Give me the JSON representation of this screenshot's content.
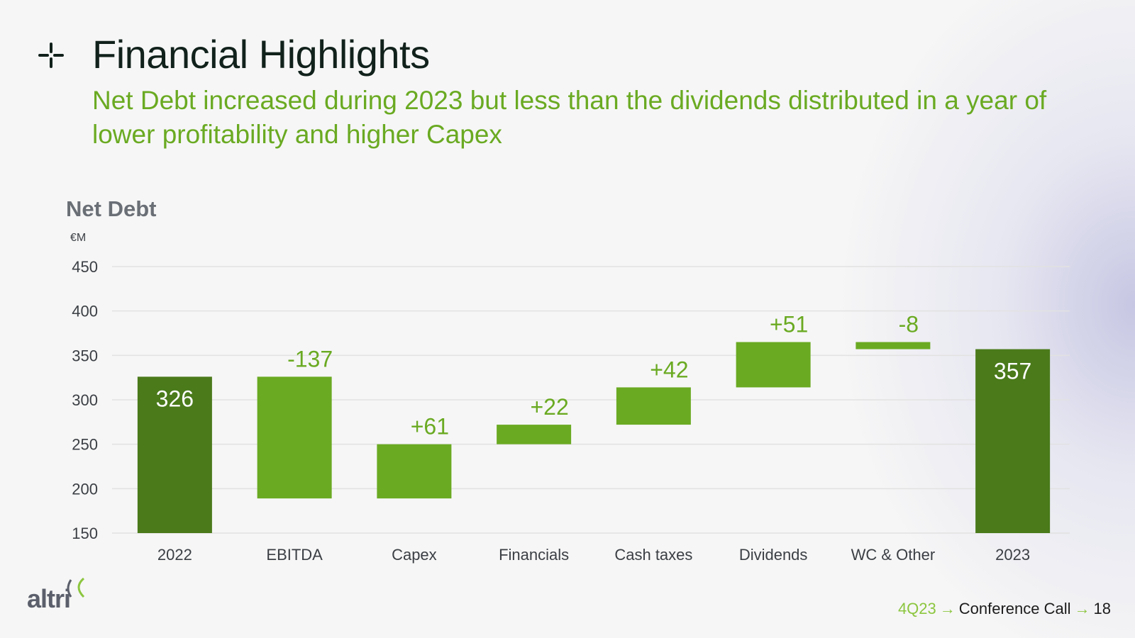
{
  "header": {
    "title": "Financial Highlights",
    "subtitle": "Net Debt increased during 2023 but less than the dividends distributed in a year of lower profitability and higher Capex"
  },
  "chart_data": {
    "type": "bar",
    "title": "Net Debt",
    "unit": "€M",
    "ylim": [
      150,
      450
    ],
    "yticks": [
      150,
      200,
      250,
      300,
      350,
      400,
      450
    ],
    "grid": true,
    "bars": [
      {
        "category": "2022",
        "kind": "total",
        "base": 150,
        "top": 326,
        "label": "326"
      },
      {
        "category": "EBITDA",
        "kind": "delta",
        "base": 189,
        "top": 326,
        "label": "-137"
      },
      {
        "category": "Capex",
        "kind": "delta",
        "base": 189,
        "top": 250,
        "label": "+61"
      },
      {
        "category": "Financials",
        "kind": "delta",
        "base": 250,
        "top": 272,
        "label": "+22"
      },
      {
        "category": "Cash taxes",
        "kind": "delta",
        "base": 272,
        "top": 314,
        "label": "+42"
      },
      {
        "category": "Dividends",
        "kind": "delta",
        "base": 314,
        "top": 365,
        "label": "+51"
      },
      {
        "category": "WC & Other",
        "kind": "delta",
        "base": 357,
        "top": 365,
        "label": "-8"
      },
      {
        "category": "2023",
        "kind": "total",
        "base": 150,
        "top": 357,
        "label": "357"
      }
    ],
    "colors": {
      "total": "#4a7a1a",
      "delta": "#6aaa22",
      "grid": "#e2e2e2",
      "tick_text": "#3b3f44",
      "delta_label": "#6aaa22",
      "total_label": "#ffffff"
    }
  },
  "logo": {
    "text": "altri"
  },
  "footer": {
    "period": "4Q23",
    "event": "Conference Call",
    "page": "18"
  }
}
